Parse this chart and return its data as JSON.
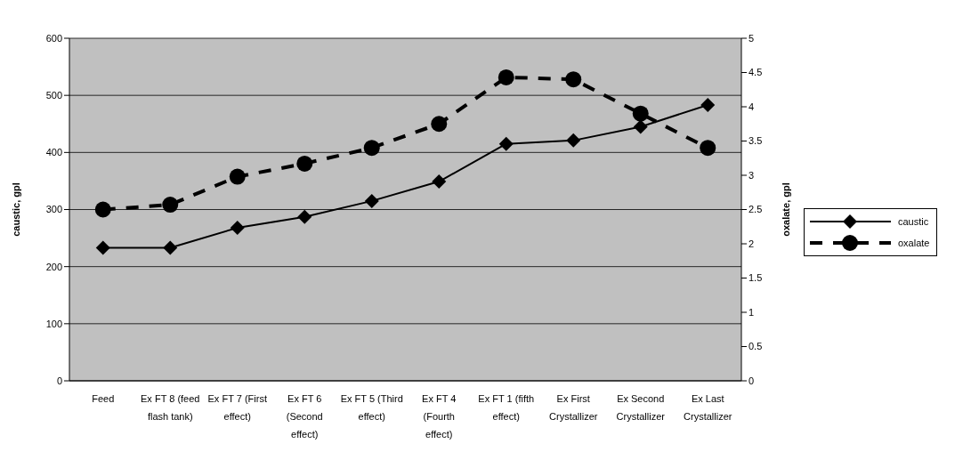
{
  "chart_data": {
    "type": "line",
    "xlabel": null,
    "ylabel": "caustic, gpl",
    "y2label": "oxalate, gpl",
    "categories": [
      "Feed",
      "Ex FT 8 (feed flash tank)",
      "Ex FT 7 (First effect)",
      "Ex FT 6 (Second effect)",
      "Ex FT 5 (Third effect)",
      "Ex FT 4 (Fourth effect)",
      "Ex FT 1 (fifth effect)",
      "Ex First Crystallizer",
      "Ex Second Crystallizer",
      "Ex Last Crystallizer"
    ],
    "series": [
      {
        "name": "caustic",
        "color": "#000000",
        "marker": "diamond",
        "line_style": "solid",
        "values": [
          233,
          233,
          268,
          287,
          315,
          349,
          415,
          421,
          445,
          483
        ]
      },
      {
        "name": "oxalate",
        "color": "#000000",
        "marker": "circle",
        "line_style": "dashed",
        "axis": "y2",
        "values": [
          2.5,
          2.57,
          2.98,
          3.17,
          3.4,
          3.75,
          4.43,
          4.4,
          3.9,
          3.4
        ]
      }
    ],
    "ylim": [
      0,
      600
    ],
    "yticks": [
      0,
      100,
      200,
      300,
      400,
      500,
      600
    ],
    "y2lim": [
      0,
      5
    ],
    "y2ticks": [
      0,
      0.5,
      1,
      1.5,
      2,
      2.5,
      3,
      3.5,
      4,
      4.5,
      5
    ],
    "grid": "y",
    "legend": "right"
  }
}
